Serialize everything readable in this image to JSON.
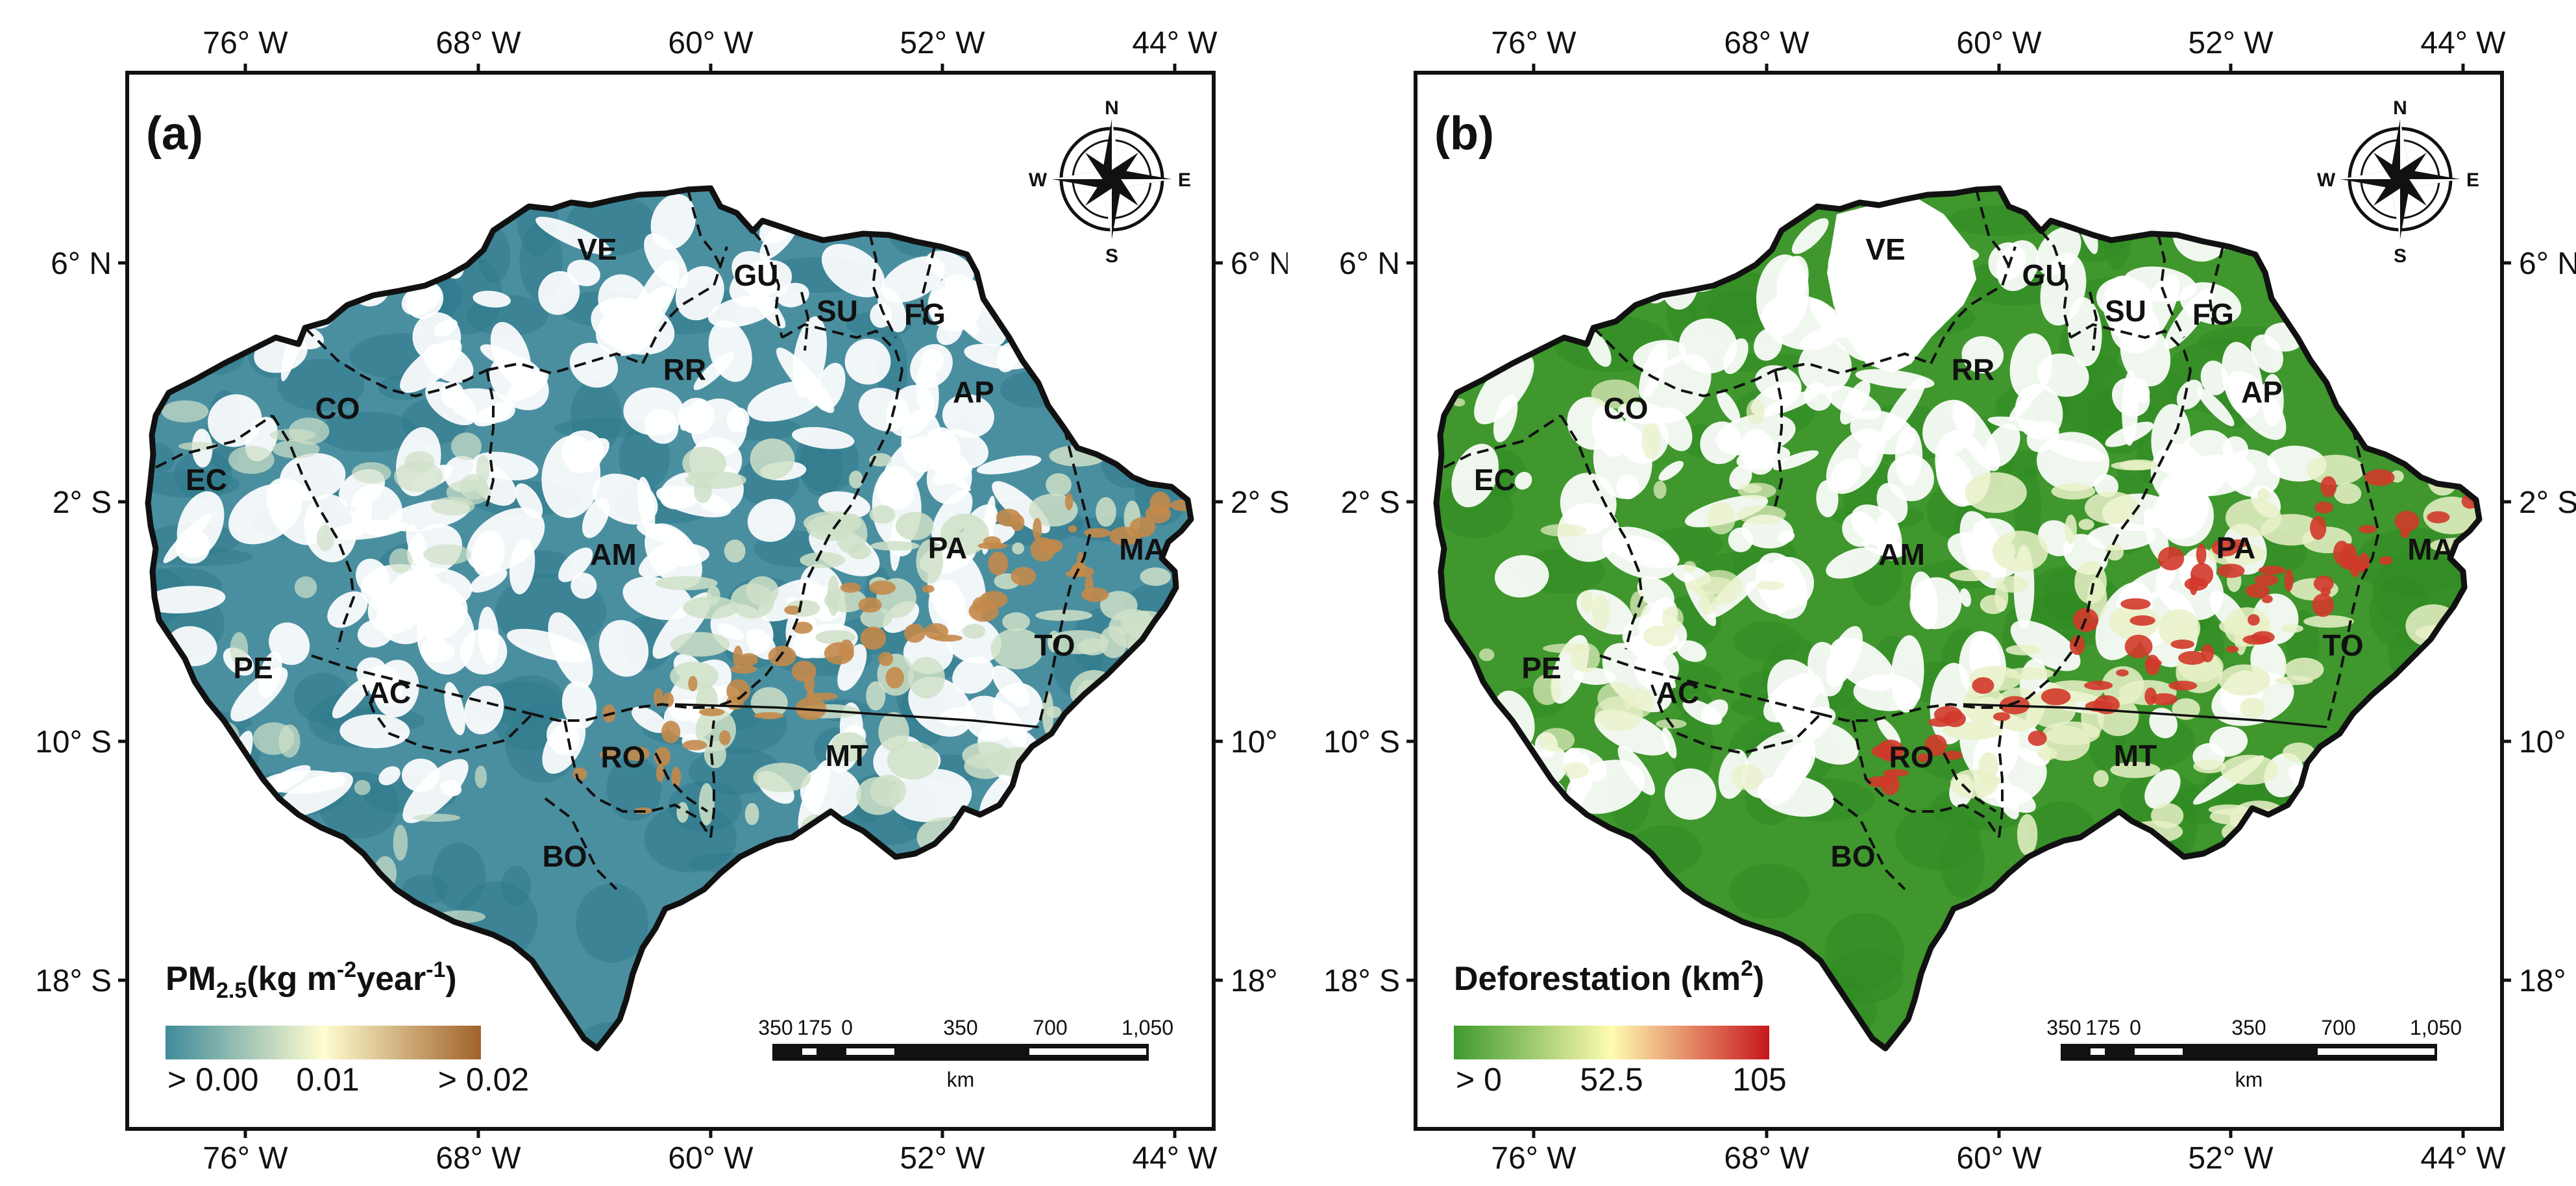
{
  "axis_labels": {
    "top": [
      "76° W",
      "68° W",
      "60° W",
      "52° W",
      "44° W"
    ],
    "bottom": [
      "76° W",
      "68° W",
      "60° W",
      "52° W",
      "44° W"
    ],
    "left": [
      "6° N",
      "2° S",
      "10° S",
      "18° S"
    ],
    "right": [
      "6° N",
      "2° S",
      "10° S",
      "18° S"
    ]
  },
  "compass": {
    "n": "N",
    "s": "S",
    "e": "E",
    "w": "W"
  },
  "regions": [
    "VE",
    "GU",
    "SU",
    "FG",
    "RR",
    "AP",
    "CO",
    "EC",
    "AM",
    "PA",
    "MA",
    "TO",
    "PE",
    "AC",
    "RO",
    "MT",
    "BO"
  ],
  "scale_bar": {
    "ticks": [
      "350",
      "175",
      "0",
      "350",
      "700",
      "1,050"
    ],
    "unit": "km"
  },
  "panels": [
    {
      "label": "(a)",
      "legend": {
        "title": "PM",
        "title_sub": "2.5",
        "title_rest": "(kg m",
        "title_sup": "-2",
        "title_rest2": "year",
        "title_sup2": "-1",
        "title_end": ")",
        "ticks": [
          "> 0.00",
          "0.01",
          "> 0.02"
        ],
        "colors": [
          "#3e8b9a",
          "#fffdd0",
          "#a0622a"
        ]
      },
      "map_colors": {
        "base": "#4a8fa0",
        "dark": "#2f7a8c",
        "light": "#cfe0c8",
        "hot": "#c48a4a"
      }
    },
    {
      "label": "(b)",
      "legend": {
        "title": "Deforestation (km",
        "title_sup": "2",
        "title_end": ")",
        "ticks": [
          "> 0",
          "52.5",
          "105"
        ],
        "colors": [
          "#3e9a2e",
          "#fffbb0",
          "#c8161c"
        ]
      },
      "map_colors": {
        "base": "#3f972d",
        "dark": "#2f8a22",
        "light": "#e9f1c8",
        "hot": "#d2382a"
      }
    }
  ]
}
